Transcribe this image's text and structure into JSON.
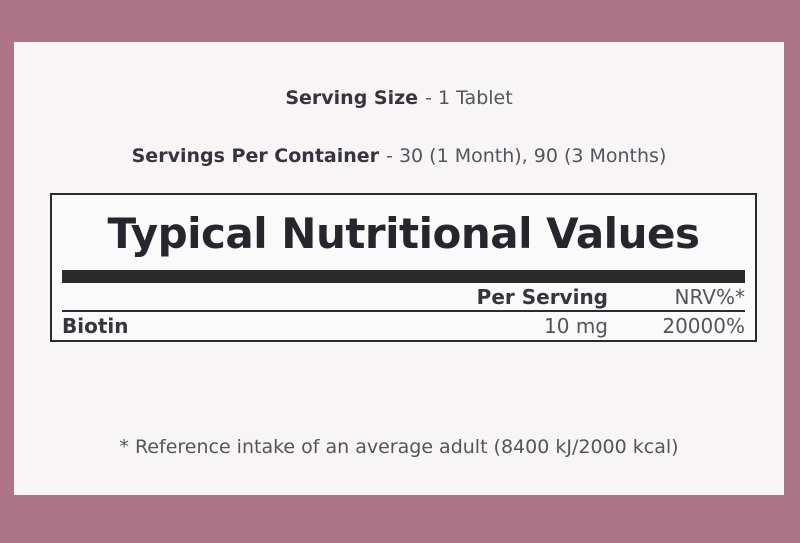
{
  "theme": {
    "frame_color": "#ad7488",
    "panel_color": "#f7f5f6",
    "box_bg_color": "#fbfafa",
    "line_color": "#2b2a33",
    "bar_color": "#2b2b2e",
    "title_color": "#29252f",
    "bold_text_color": "#37343f",
    "regular_text_color": "#55535c"
  },
  "header": {
    "serving_size_label": "Serving Size",
    "serving_size_value": "- 1 Tablet",
    "servings_per_container_label": "Servings Per Container",
    "servings_per_container_value": "- 30 (1 Month), 90 (3 Months)"
  },
  "table": {
    "title": "Typical Nutritional Values",
    "columns": {
      "per_serving": "Per Serving",
      "nrv": "NRV%*"
    },
    "rows": [
      {
        "name": "Biotin",
        "per_serving": "10 mg",
        "nrv": "20000%"
      }
    ]
  },
  "footnote": "* Reference intake of an average adult (8400 kJ/2000 kcal)"
}
